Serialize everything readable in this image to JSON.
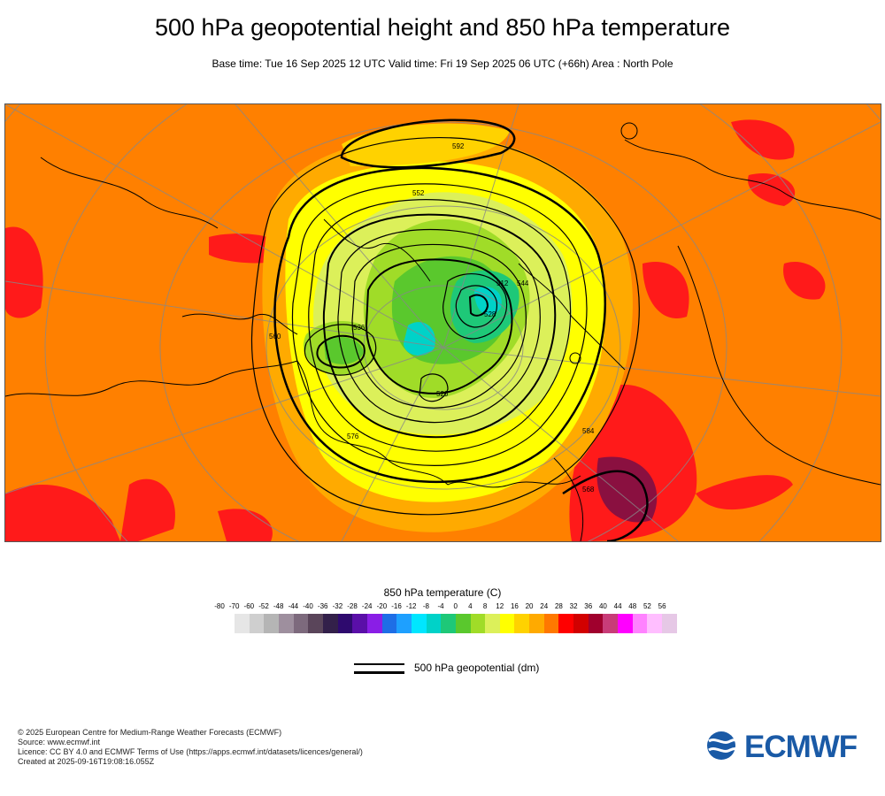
{
  "title": "500 hPa geopotential height and 850 hPa temperature",
  "subtitle": "Base time: Tue 16 Sep 2025 12 UTC Valid time: Fri 19 Sep 2025 06 UTC (+66h) Area : North Pole",
  "colorbar": {
    "title": "850 hPa temperature (C)",
    "ticks": [
      "-80",
      "-70",
      "-60",
      "-52",
      "-48",
      "-44",
      "-40",
      "-36",
      "-32",
      "-28",
      "-24",
      "-20",
      "-16",
      "-12",
      "-8",
      "-4",
      "0",
      "4",
      "8",
      "12",
      "16",
      "20",
      "24",
      "28",
      "32",
      "36",
      "40",
      "44",
      "48",
      "52",
      "56"
    ],
    "colors": [
      "#e6e6e6",
      "#cfcfcf",
      "#b5b5b5",
      "#9e8f9e",
      "#7d6a7d",
      "#5a455a",
      "#33204a",
      "#2e0a6e",
      "#5a0fa8",
      "#8a1ee6",
      "#1e6ee6",
      "#1ea0ff",
      "#00e6ff",
      "#00d2c8",
      "#1ec878",
      "#5ac82d",
      "#a0dc28",
      "#dcf05a",
      "#ffff00",
      "#ffd200",
      "#ffaa00",
      "#ff7800",
      "#ff0000",
      "#d20000",
      "#a0002d",
      "#c83c78",
      "#ff00ff",
      "#ff82ff",
      "#ffbeff",
      "#e6c8e6",
      "#e6e6e6"
    ]
  },
  "legend": {
    "label": "500 hPa geopotential (dm)"
  },
  "contour_labels": [
    "592",
    "552",
    "544",
    "528",
    "536",
    "520",
    "576",
    "584",
    "568",
    "560",
    "512"
  ],
  "credits": [
    "© 2025 European Centre for Medium-Range Weather Forecasts (ECMWF)",
    "Source: www.ecmwf.int",
    "Licence: CC BY 4.0 and ECMWF Terms of Use (https://apps.ecmwf.int/datasets/licences/general/)",
    "Created at 2025-09-16T19:08:16.055Z"
  ],
  "logo": {
    "text": "ECMWF",
    "color": "#1a5aa6"
  }
}
